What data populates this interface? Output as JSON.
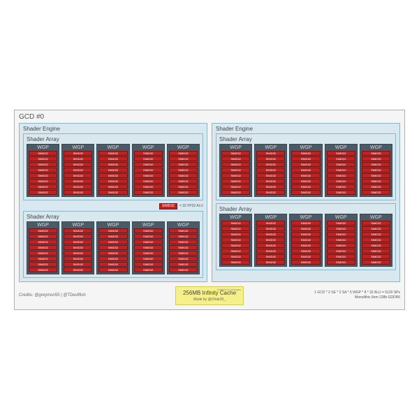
{
  "type": "diagram",
  "gcd_title": "GCD #0",
  "shader_engine_label": "Shader Engine",
  "shader_array_label": "Shader Array",
  "wgp_label": "WGP",
  "simd_label": "SIMD32",
  "num_shader_engines": 2,
  "arrays_per_engine": 2,
  "wgps_per_array": 5,
  "simds_per_wgp": 8,
  "legend_simd": "SIMD32",
  "legend_text": "= 32 FP32 ALU",
  "credits": "Credits: @greymon55 | @TDevilfish",
  "cache_label": "256MB Infinity Cache",
  "cache_subject": "Subject to changes",
  "cache_by": "Made by @Olrak29_",
  "specs_line1": "1 GCD * 2 SE * 2 SA * 5 WGP * 8 * 32 ALU = 5120 SPs",
  "specs_line2": "Monolithic 6nm 128b GDDR6",
  "colors": {
    "gcd_bg": "#f5f5f5",
    "gcd_border": "#b0b0b0",
    "se_bg": "#d9e8ef",
    "se_border": "#8bb5c9",
    "wgp_bg": "#4a5a66",
    "wgp_border": "#3a4650",
    "simd_bg": "#c52020",
    "simd_border": "#7a1010",
    "cache_bg": "#f5f08a",
    "cache_border": "#d4cc50"
  }
}
